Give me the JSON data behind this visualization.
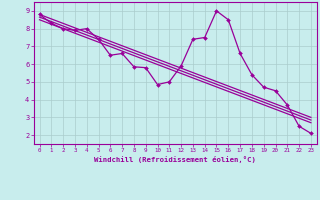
{
  "xlabel": "Windchill (Refroidissement éolien,°C)",
  "bg_color": "#c8eded",
  "line_color": "#990099",
  "grid_color": "#aacccc",
  "xlim": [
    -0.5,
    23.5
  ],
  "ylim": [
    1.5,
    9.5
  ],
  "yticks": [
    2,
    3,
    4,
    5,
    6,
    7,
    8,
    9
  ],
  "xticks": [
    0,
    1,
    2,
    3,
    4,
    5,
    6,
    7,
    8,
    9,
    10,
    11,
    12,
    13,
    14,
    15,
    16,
    17,
    18,
    19,
    20,
    21,
    22,
    23
  ],
  "main_line_x": [
    0,
    1,
    2,
    3,
    4,
    5,
    6,
    7,
    8,
    9,
    10,
    11,
    12,
    13,
    14,
    15,
    16,
    17,
    18,
    19,
    20,
    21,
    22,
    23
  ],
  "main_line_y": [
    8.8,
    8.3,
    8.0,
    7.9,
    8.0,
    7.4,
    6.5,
    6.6,
    5.85,
    5.8,
    4.85,
    5.0,
    5.9,
    7.4,
    7.5,
    9.0,
    8.5,
    6.6,
    5.4,
    4.7,
    4.5,
    3.7,
    2.5,
    2.1
  ],
  "reg_lines": [
    {
      "x0": 0,
      "y0": 8.8,
      "x1": 23,
      "y1": 3.0
    },
    {
      "x0": 0,
      "y0": 8.65,
      "x1": 23,
      "y1": 2.85
    },
    {
      "x0": 0,
      "y0": 8.5,
      "x1": 23,
      "y1": 2.7
    }
  ]
}
